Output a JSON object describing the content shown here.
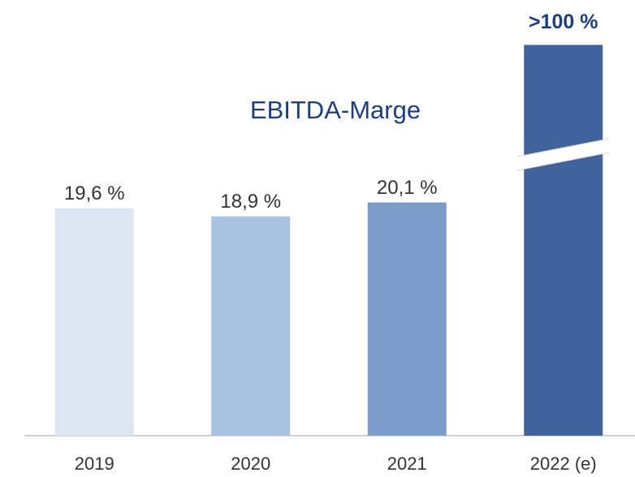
{
  "chart_data": {
    "type": "bar",
    "title": "EBITDA-Marge",
    "categories": [
      "2019",
      "2020",
      "2021",
      "2022 (e)"
    ],
    "values": [
      19.6,
      18.9,
      20.1,
      100
    ],
    "value_labels": [
      "19,6 %",
      "18,9 %",
      "20,1 %",
      ">100 %"
    ],
    "colors": [
      "#dce6f2",
      "#a9c2e1",
      "#7c9dc9",
      "#41639b"
    ],
    "axis_break": true
  }
}
